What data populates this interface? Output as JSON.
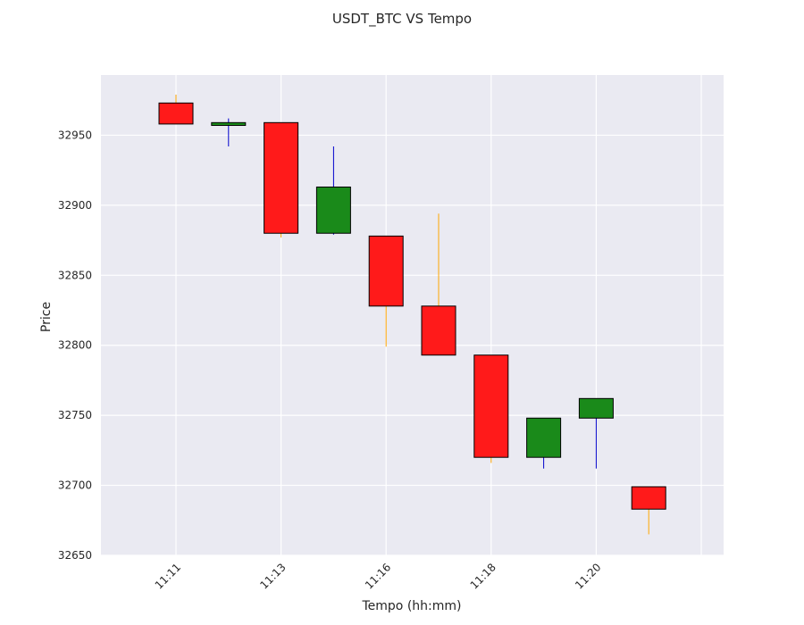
{
  "chart_data": {
    "type": "candlestick",
    "title": "USDT_BTC VS Tempo",
    "xlabel": "Tempo (hh:mm)",
    "ylabel": "Price",
    "ylim": [
      32650,
      32993
    ],
    "yticks": [
      32650,
      32700,
      32750,
      32800,
      32850,
      32900,
      32950
    ],
    "xticks": [
      {
        "index": 0,
        "label": "11:11"
      },
      {
        "index": 2,
        "label": "11:13"
      },
      {
        "index": 4,
        "label": "11:16"
      },
      {
        "index": 6,
        "label": "11:18"
      },
      {
        "index": 8,
        "label": "11:20"
      }
    ],
    "grid": true,
    "colors": {
      "up_body": "#1a8a1a",
      "down_body": "#ff1a1a",
      "up_wick": "#0000cc",
      "down_wick": "#ffa500",
      "background": "#eaeaf2",
      "grid": "#ffffff"
    },
    "candles": [
      {
        "open": 32973,
        "high": 32979,
        "low": 32958,
        "close": 32958
      },
      {
        "open": 32957,
        "high": 32962,
        "low": 32942,
        "close": 32959
      },
      {
        "open": 32959,
        "high": 32959,
        "low": 32877,
        "close": 32880
      },
      {
        "open": 32880,
        "high": 32942,
        "low": 32879,
        "close": 32913
      },
      {
        "open": 32878,
        "high": 32878,
        "low": 32799,
        "close": 32828
      },
      {
        "open": 32828,
        "high": 32894,
        "low": 32793,
        "close": 32793
      },
      {
        "open": 32793,
        "high": 32793,
        "low": 32716,
        "close": 32720
      },
      {
        "open": 32720,
        "high": 32748,
        "low": 32712,
        "close": 32748
      },
      {
        "open": 32748,
        "high": 32762,
        "low": 32712,
        "close": 32762
      },
      {
        "open": 32699,
        "high": 32699,
        "low": 32665,
        "close": 32683
      }
    ]
  }
}
